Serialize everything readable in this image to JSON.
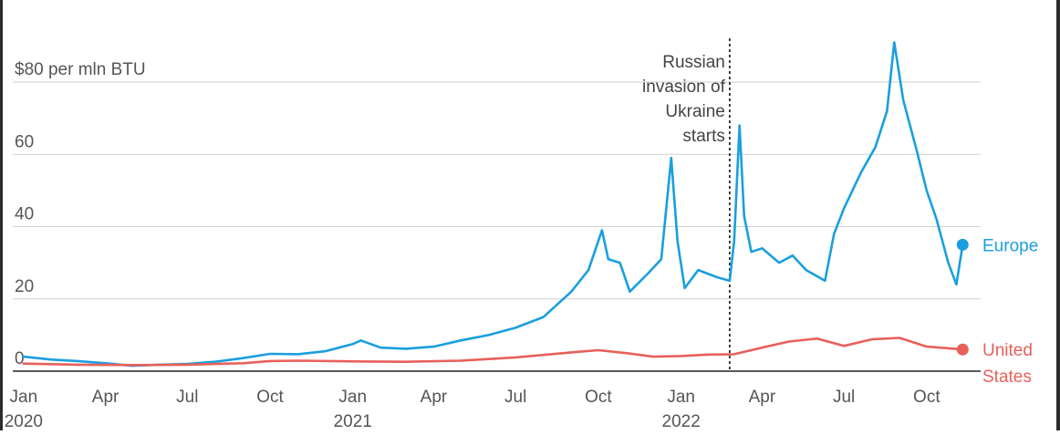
{
  "chart_data": {
    "type": "line",
    "ylabel": "$80 per mln BTU",
    "ylim": [
      0,
      82
    ],
    "yticks": [
      0,
      20,
      40,
      60,
      80
    ],
    "ytick_labels": [
      "0",
      "20",
      "40",
      "60",
      "$80 per mln BTU"
    ],
    "xlim": [
      "2019-12-20",
      "2022-11-30"
    ],
    "xticks": [
      {
        "date": "2020-01-01",
        "label": "Jan",
        "year": "2020"
      },
      {
        "date": "2020-04-01",
        "label": "Apr",
        "year": ""
      },
      {
        "date": "2020-07-01",
        "label": "Jul",
        "year": ""
      },
      {
        "date": "2020-10-01",
        "label": "Oct",
        "year": ""
      },
      {
        "date": "2021-01-01",
        "label": "Jan",
        "year": "2021"
      },
      {
        "date": "2021-04-01",
        "label": "Apr",
        "year": ""
      },
      {
        "date": "2021-07-01",
        "label": "Jul",
        "year": ""
      },
      {
        "date": "2021-10-01",
        "label": "Oct",
        "year": ""
      },
      {
        "date": "2022-01-01",
        "label": "Jan",
        "year": "2022"
      },
      {
        "date": "2022-04-01",
        "label": "Apr",
        "year": ""
      },
      {
        "date": "2022-07-01",
        "label": "Jul",
        "year": ""
      },
      {
        "date": "2022-10-01",
        "label": "Oct",
        "year": ""
      }
    ],
    "grid": true,
    "annotation": {
      "date": "2022-02-24",
      "lines": [
        "Russian",
        "invasion of",
        "Ukraine",
        "starts"
      ]
    },
    "series": [
      {
        "name": "Europe",
        "color": "#1a9fde",
        "label_lines": [
          "Europe"
        ],
        "points": [
          [
            "2020-01-01",
            4.0
          ],
          [
            "2020-02-01",
            3.2
          ],
          [
            "2020-03-01",
            2.8
          ],
          [
            "2020-04-01",
            2.2
          ],
          [
            "2020-05-01",
            1.5
          ],
          [
            "2020-06-01",
            1.8
          ],
          [
            "2020-07-01",
            2.0
          ],
          [
            "2020-08-01",
            2.6
          ],
          [
            "2020-09-01",
            3.6
          ],
          [
            "2020-10-01",
            4.8
          ],
          [
            "2020-11-01",
            4.7
          ],
          [
            "2020-12-01",
            5.5
          ],
          [
            "2021-01-01",
            7.5
          ],
          [
            "2021-01-10",
            8.5
          ],
          [
            "2021-02-01",
            6.5
          ],
          [
            "2021-03-01",
            6.2
          ],
          [
            "2021-04-01",
            6.8
          ],
          [
            "2021-05-01",
            8.5
          ],
          [
            "2021-06-01",
            10.0
          ],
          [
            "2021-07-01",
            12.0
          ],
          [
            "2021-08-01",
            15.0
          ],
          [
            "2021-09-01",
            22.0
          ],
          [
            "2021-09-20",
            28.0
          ],
          [
            "2021-10-05",
            39.0
          ],
          [
            "2021-10-12",
            31.0
          ],
          [
            "2021-10-25",
            30.0
          ],
          [
            "2021-11-05",
            22.0
          ],
          [
            "2021-11-25",
            27.0
          ],
          [
            "2021-12-10",
            31.0
          ],
          [
            "2021-12-21",
            59.0
          ],
          [
            "2021-12-28",
            36.0
          ],
          [
            "2022-01-05",
            23.0
          ],
          [
            "2022-01-20",
            28.0
          ],
          [
            "2022-02-10",
            26.0
          ],
          [
            "2022-02-24",
            25.0
          ],
          [
            "2022-03-01",
            36.0
          ],
          [
            "2022-03-07",
            68.0
          ],
          [
            "2022-03-12",
            43.0
          ],
          [
            "2022-03-20",
            33.0
          ],
          [
            "2022-04-01",
            34.0
          ],
          [
            "2022-04-20",
            30.0
          ],
          [
            "2022-05-05",
            32.0
          ],
          [
            "2022-05-20",
            28.0
          ],
          [
            "2022-06-10",
            25.0
          ],
          [
            "2022-06-20",
            38.0
          ],
          [
            "2022-07-01",
            45.0
          ],
          [
            "2022-07-20",
            55.0
          ],
          [
            "2022-08-05",
            62.0
          ],
          [
            "2022-08-18",
            72.0
          ],
          [
            "2022-08-26",
            91.0
          ],
          [
            "2022-09-05",
            75.0
          ],
          [
            "2022-09-20",
            61.0
          ],
          [
            "2022-10-01",
            50.0
          ],
          [
            "2022-10-12",
            42.0
          ],
          [
            "2022-10-25",
            30.0
          ],
          [
            "2022-11-03",
            24.0
          ],
          [
            "2022-11-10",
            35.0
          ]
        ]
      },
      {
        "name": "United States",
        "color": "#e8605a",
        "label_lines": [
          "United",
          "States"
        ],
        "points": [
          [
            "2020-01-01",
            2.1
          ],
          [
            "2020-03-01",
            1.8
          ],
          [
            "2020-05-01",
            1.7
          ],
          [
            "2020-07-01",
            1.8
          ],
          [
            "2020-09-01",
            2.2
          ],
          [
            "2020-10-01",
            2.8
          ],
          [
            "2020-11-01",
            2.9
          ],
          [
            "2021-01-01",
            2.7
          ],
          [
            "2021-03-01",
            2.6
          ],
          [
            "2021-05-01",
            2.9
          ],
          [
            "2021-07-01",
            3.8
          ],
          [
            "2021-09-01",
            5.2
          ],
          [
            "2021-10-01",
            5.8
          ],
          [
            "2021-11-01",
            5.0
          ],
          [
            "2021-12-01",
            4.0
          ],
          [
            "2022-01-01",
            4.2
          ],
          [
            "2022-02-01",
            4.6
          ],
          [
            "2022-03-01",
            4.7
          ],
          [
            "2022-04-01",
            6.5
          ],
          [
            "2022-05-01",
            8.2
          ],
          [
            "2022-06-01",
            9.0
          ],
          [
            "2022-07-01",
            7.0
          ],
          [
            "2022-08-01",
            8.8
          ],
          [
            "2022-09-01",
            9.2
          ],
          [
            "2022-10-01",
            6.8
          ],
          [
            "2022-11-10",
            6.0
          ]
        ]
      }
    ]
  }
}
